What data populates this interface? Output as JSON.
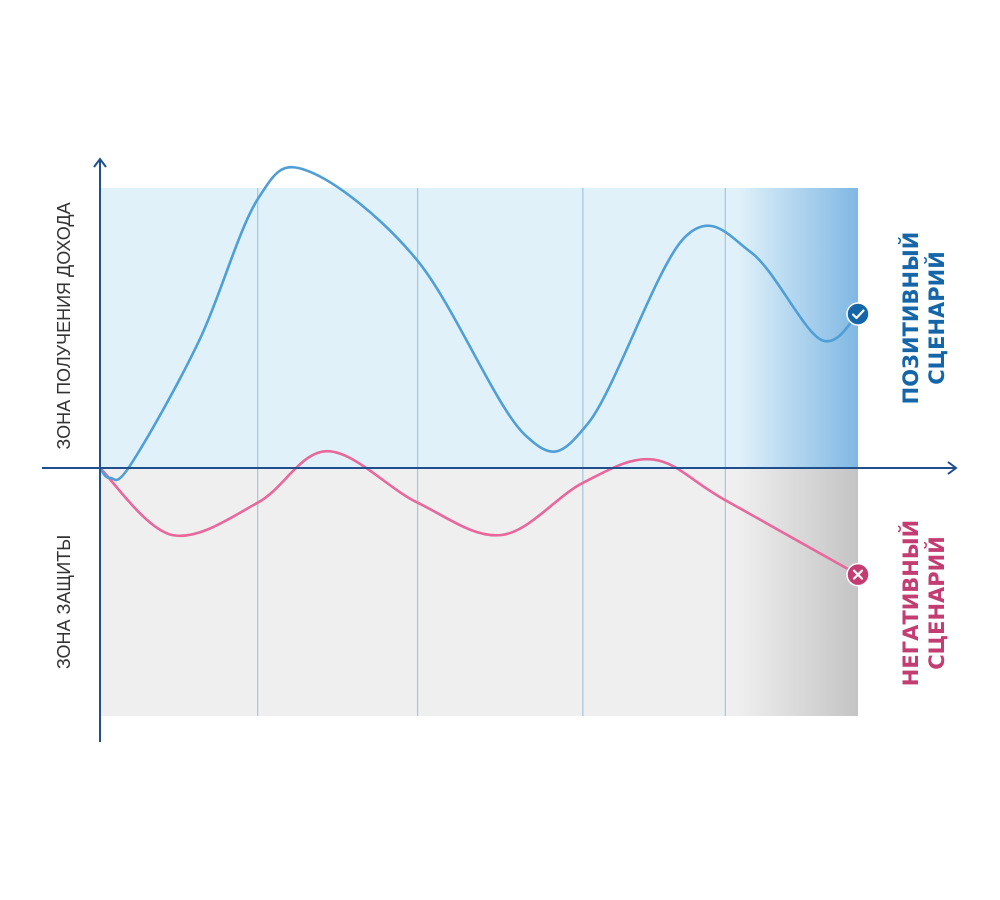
{
  "chart_data": {
    "type": "line",
    "title": "",
    "zones": {
      "top": "ЗОНА ПОЛУЧЕНИЯ ДОХОДА",
      "bottom": "ЗОНА ЗАЩИТЫ"
    },
    "x_range": [
      0,
      10
    ],
    "y_range": [
      -10,
      10
    ],
    "gridlines_x": [
      2.08,
      4.19,
      6.37,
      8.25
    ],
    "series": [
      {
        "name": "ПОЗИТИВНЫЙ СЦЕНАРИЙ",
        "line1": "ПОЗИТИВНЫЙ",
        "line2": "СЦЕНАРИЙ",
        "color": "#4f9fd6",
        "end_color": "#1466a8",
        "marker": "check-icon",
        "points": [
          [
            0.0,
            0.0
          ],
          [
            0.13,
            -0.4
          ],
          [
            0.4,
            0.1
          ],
          [
            1.3,
            4.5
          ],
          [
            2.08,
            9.6
          ],
          [
            2.75,
            10.6
          ],
          [
            4.19,
            7.4
          ],
          [
            5.6,
            1.2
          ],
          [
            6.44,
            1.6
          ],
          [
            7.7,
            8.2
          ],
          [
            8.59,
            7.7
          ],
          [
            9.5,
            4.6
          ],
          [
            10.0,
            5.5
          ]
        ]
      },
      {
        "name": "НЕГАТИВНЫЙ СЦЕНАРИЙ",
        "line1": "НЕГАТИВНЫЙ",
        "line2": "СЦЕНАРИЙ",
        "color": "#e8689b",
        "end_color": "#c33c72",
        "marker": "close-icon",
        "points": [
          [
            0.0,
            0.0
          ],
          [
            0.95,
            -2.7
          ],
          [
            2.08,
            -1.4
          ],
          [
            3.0,
            0.6
          ],
          [
            4.19,
            -1.4
          ],
          [
            5.3,
            -2.7
          ],
          [
            6.37,
            -0.6
          ],
          [
            7.3,
            0.3
          ],
          [
            8.25,
            -1.3
          ],
          [
            10.0,
            -4.3
          ]
        ]
      }
    ],
    "colors": {
      "top_zone": "#e0f1fa",
      "bottom_zone": "#efefef",
      "axis": "#1f4f8c",
      "grid": "#a9c8e0"
    }
  }
}
